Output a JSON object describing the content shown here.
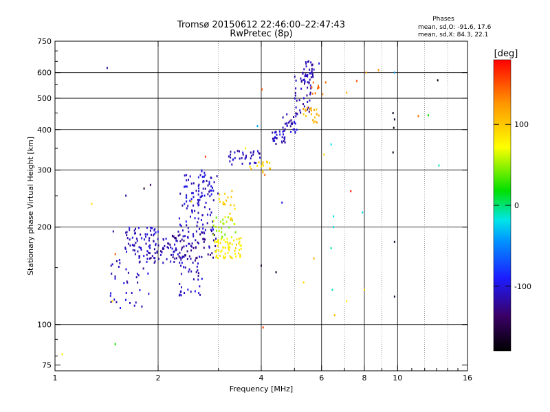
{
  "chart_data": {
    "type": "scatter",
    "title": "Tromsø 20150612 22:46:00–22:47:43",
    "subtitle": "RwPretec (8p)",
    "xlabel": "Frequency [MHz]",
    "ylabel": "Stationary phase Virtual Height [km]",
    "x_scale": "log",
    "y_scale": "log",
    "xlim": [
      1,
      16
    ],
    "ylim": [
      72,
      750
    ],
    "xticks": [
      1,
      2,
      4,
      6,
      8,
      10,
      16
    ],
    "xtick_labels": [
      "1",
      "2",
      "4",
      "6",
      "8",
      "10",
      "16"
    ],
    "yticks": [
      75,
      100,
      200,
      300,
      400,
      500,
      600,
      750
    ],
    "ytick_labels": [
      "75",
      "100",
      "200",
      "300",
      "400",
      "500",
      "600",
      "750"
    ],
    "grid": true,
    "phase_box": {
      "title": "Phases",
      "line1": "mean, sd,O: -91.6, 17.6",
      "line2": "mean, sd,X:  84.3, 22.1"
    },
    "colorbar": {
      "label": "[deg]",
      "range": [
        -180,
        180
      ],
      "ticks": [
        100,
        0,
        -100
      ],
      "tick_labels": [
        "100",
        "0",
        "-100"
      ]
    },
    "points": [
      [
        1.42,
        620,
        -120
      ],
      [
        1.05,
        81,
        80
      ],
      [
        1.28,
        236,
        90
      ],
      [
        1.5,
        87,
        20
      ],
      [
        1.47,
        118,
        90
      ],
      [
        1.5,
        165,
        150
      ],
      [
        1.48,
        194,
        -120
      ],
      [
        1.61,
        250,
        -120
      ],
      [
        1.82,
        263,
        -160
      ],
      [
        1.9,
        270,
        -130
      ],
      [
        4.02,
        532,
        150
      ],
      [
        4.05,
        98,
        160
      ],
      [
        4.0,
        152,
        -160
      ],
      [
        4.42,
        145,
        -160
      ],
      [
        4.6,
        238,
        -100
      ],
      [
        5.32,
        135,
        90
      ],
      [
        6.1,
        335,
        90
      ],
      [
        6.4,
        360,
        -20
      ],
      [
        6.5,
        216,
        -20
      ],
      [
        6.5,
        200,
        -20
      ],
      [
        6.4,
        172,
        -10
      ],
      [
        6.45,
        128,
        -10
      ],
      [
        6.55,
        107,
        110
      ],
      [
        7.1,
        118,
        80
      ],
      [
        7.3,
        258,
        170
      ],
      [
        7.6,
        565,
        150
      ],
      [
        7.1,
        520,
        110
      ],
      [
        7.9,
        222,
        -20
      ],
      [
        8.1,
        600,
        120
      ],
      [
        8.8,
        610,
        130
      ],
      [
        9.8,
        600,
        -40
      ],
      [
        9.7,
        450,
        -170
      ],
      [
        9.8,
        430,
        -170
      ],
      [
        9.75,
        405,
        -170
      ],
      [
        9.7,
        340,
        -170
      ],
      [
        9.8,
        180,
        -160
      ],
      [
        9.8,
        122,
        -160
      ],
      [
        11.5,
        440,
        140
      ],
      [
        12.3,
        443,
        20
      ],
      [
        13.1,
        568,
        -170
      ],
      [
        13.2,
        310,
        -10
      ],
      [
        8.0,
        128,
        100
      ],
      [
        5.9,
        640,
        -100
      ],
      [
        5.7,
        160,
        110
      ],
      [
        3.9,
        410,
        -40
      ],
      [
        4.1,
        290,
        140
      ],
      [
        2.75,
        330,
        160
      ],
      [
        3.6,
        350,
        80
      ],
      [
        2.5,
        240,
        90
      ]
    ],
    "clusters": [
      {
        "x": [
          1.45,
          1.9
        ],
        "y": [
          112,
          160
        ],
        "phase": -110,
        "n": 40
      },
      {
        "x": [
          1.6,
          2.0
        ],
        "y": [
          160,
          200
        ],
        "phase": -110,
        "n": 70
      },
      {
        "x": [
          1.9,
          2.4
        ],
        "y": [
          155,
          185
        ],
        "phase": -115,
        "n": 55
      },
      {
        "x": [
          2.2,
          2.95
        ],
        "y": [
          160,
          195
        ],
        "phase": -120,
        "n": 70
      },
      {
        "x": [
          2.3,
          2.9
        ],
        "y": [
          195,
          290
        ],
        "phase": -105,
        "n": 80
      },
      {
        "x": [
          2.6,
          3.0
        ],
        "y": [
          240,
          300
        ],
        "phase": -110,
        "n": 30
      },
      {
        "x": [
          2.3,
          2.7
        ],
        "y": [
          120,
          160
        ],
        "phase": -110,
        "n": 35
      },
      {
        "x": [
          2.9,
          3.5
        ],
        "y": [
          160,
          185
        ],
        "phase": 85,
        "n": 65
      },
      {
        "x": [
          2.9,
          3.4
        ],
        "y": [
          185,
          215
        ],
        "phase": 50,
        "n": 25
      },
      {
        "x": [
          3.0,
          3.4
        ],
        "y": [
          210,
          260
        ],
        "phase": 95,
        "n": 20
      },
      {
        "x": [
          3.2,
          4.0
        ],
        "y": [
          310,
          345
        ],
        "phase": -110,
        "n": 35
      },
      {
        "x": [
          3.7,
          4.3
        ],
        "y": [
          295,
          320
        ],
        "phase": 100,
        "n": 15
      },
      {
        "x": [
          4.3,
          4.7
        ],
        "y": [
          360,
          395
        ],
        "phase": -110,
        "n": 25
      },
      {
        "x": [
          4.6,
          5.1
        ],
        "y": [
          390,
          450
        ],
        "phase": -110,
        "n": 30
      },
      {
        "x": [
          5.0,
          5.6
        ],
        "y": [
          450,
          600
        ],
        "phase": -115,
        "n": 45
      },
      {
        "x": [
          5.3,
          5.7
        ],
        "y": [
          580,
          650
        ],
        "phase": -115,
        "n": 25
      },
      {
        "x": [
          5.3,
          5.9
        ],
        "y": [
          420,
          470
        ],
        "phase": 110,
        "n": 20
      },
      {
        "x": [
          5.6,
          6.2
        ],
        "y": [
          500,
          560
        ],
        "phase": 140,
        "n": 10
      }
    ]
  }
}
